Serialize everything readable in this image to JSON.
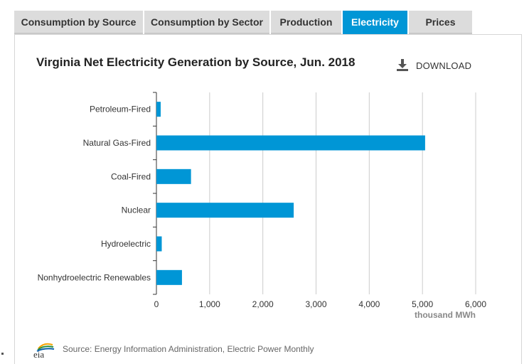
{
  "tabs": [
    {
      "label": "Consumption by Source",
      "active": false
    },
    {
      "label": "Consumption by Sector",
      "active": false
    },
    {
      "label": "Production",
      "active": false
    },
    {
      "label": "Electricity",
      "active": true
    },
    {
      "label": "Prices",
      "active": false
    }
  ],
  "download": {
    "label": "DOWNLOAD",
    "icon": "download-icon"
  },
  "source": {
    "logo_text": "eia",
    "text": "Source: Energy Information Administration, Electric Power Monthly"
  },
  "colors": {
    "accent": "#0096d6",
    "bar": "#0096d6",
    "tab_bg": "#dcdcdc",
    "grid": "#cccccc"
  },
  "chart_data": {
    "type": "bar",
    "orientation": "horizontal",
    "title": "Virginia Net Electricity Generation by Source, Jun. 2018",
    "categories": [
      "Petroleum-Fired",
      "Natural Gas-Fired",
      "Coal-Fired",
      "Nuclear",
      "Hydroelectric",
      "Nonhydroelectric Renewables"
    ],
    "values": [
      80,
      5050,
      650,
      2580,
      100,
      480
    ],
    "xlabel": "thousand MWh",
    "ylabel": "",
    "xlim": [
      0,
      6000
    ],
    "xticks": [
      0,
      1000,
      2000,
      3000,
      4000,
      5000,
      6000
    ],
    "xtick_labels": [
      "0",
      "1,000",
      "2,000",
      "3,000",
      "4,000",
      "5,000",
      "6,000"
    ],
    "grid": true,
    "legend": false
  }
}
